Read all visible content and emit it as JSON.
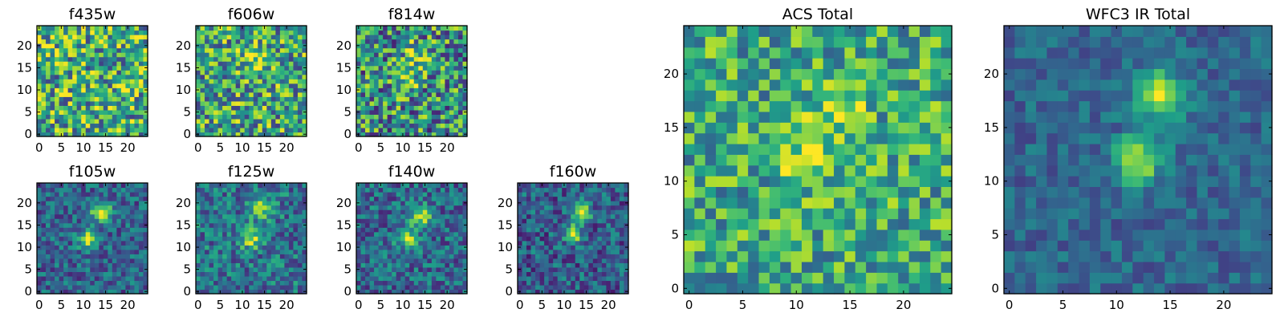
{
  "chart_data": [
    {
      "type": "heatmap",
      "title": "f435w",
      "colormap": "viridis",
      "grid_size": 25,
      "peaks": [],
      "noise": 0.42,
      "base": 0.62,
      "seed": 11,
      "xticks": [
        "0",
        "5",
        "10",
        "15",
        "20"
      ],
      "yticks": [
        "0",
        "5",
        "10",
        "15",
        "20"
      ],
      "xlim": [
        0,
        24
      ],
      "ylim": [
        0,
        24
      ]
    },
    {
      "type": "heatmap",
      "title": "f606w",
      "colormap": "viridis",
      "grid_size": 25,
      "peaks": [
        {
          "x": 13,
          "y": 17,
          "amp": 0.25,
          "sigma": 2.5
        }
      ],
      "noise": 0.4,
      "base": 0.58,
      "seed": 23,
      "xticks": [
        "0",
        "5",
        "10",
        "15",
        "20"
      ],
      "yticks": [
        "0",
        "5",
        "10",
        "15",
        "20"
      ],
      "xlim": [
        0,
        24
      ],
      "ylim": [
        0,
        24
      ]
    },
    {
      "type": "heatmap",
      "title": "f814w",
      "colormap": "viridis",
      "grid_size": 25,
      "peaks": [
        {
          "x": 13,
          "y": 18,
          "amp": 0.35,
          "sigma": 2.0
        },
        {
          "x": 11,
          "y": 12,
          "amp": 0.3,
          "sigma": 1.8
        }
      ],
      "noise": 0.42,
      "base": 0.5,
      "seed": 37,
      "xticks": [
        "0",
        "5",
        "10",
        "15",
        "20"
      ],
      "yticks": [
        "0",
        "5",
        "10",
        "15",
        "20"
      ],
      "xlim": [
        0,
        24
      ],
      "ylim": [
        0,
        24
      ]
    },
    {
      "type": "heatmap",
      "title": "f105w",
      "colormap": "viridis",
      "grid_size": 25,
      "peaks": [
        {
          "x": 14,
          "y": 18,
          "amp": 0.6,
          "sigma": 1.6
        },
        {
          "x": 11,
          "y": 12,
          "amp": 0.55,
          "sigma": 1.5
        }
      ],
      "noise": 0.22,
      "base": 0.32,
      "seed": 41,
      "xticks": [
        "0",
        "5",
        "10",
        "15",
        "20"
      ],
      "yticks": [
        "0",
        "5",
        "10",
        "15",
        "20"
      ],
      "xlim": [
        0,
        24
      ],
      "ylim": [
        0,
        24
      ]
    },
    {
      "type": "heatmap",
      "title": "f125w",
      "colormap": "viridis",
      "grid_size": 25,
      "peaks": [
        {
          "x": 14,
          "y": 19,
          "amp": 0.55,
          "sigma": 1.7
        },
        {
          "x": 12,
          "y": 12,
          "amp": 0.5,
          "sigma": 1.6
        }
      ],
      "noise": 0.25,
      "base": 0.38,
      "seed": 53,
      "xticks": [
        "0",
        "5",
        "10",
        "15",
        "20"
      ],
      "yticks": [
        "0",
        "5",
        "10",
        "15",
        "20"
      ],
      "xlim": [
        0,
        24
      ],
      "ylim": [
        0,
        24
      ]
    },
    {
      "type": "heatmap",
      "title": "f140w",
      "colormap": "viridis",
      "grid_size": 25,
      "peaks": [
        {
          "x": 14,
          "y": 17,
          "amp": 0.55,
          "sigma": 1.7
        },
        {
          "x": 11,
          "y": 12,
          "amp": 0.5,
          "sigma": 1.6
        }
      ],
      "noise": 0.24,
      "base": 0.34,
      "seed": 67,
      "xticks": [
        "0",
        "5",
        "10",
        "15",
        "20"
      ],
      "yticks": [
        "0",
        "5",
        "10",
        "15",
        "20"
      ],
      "xlim": [
        0,
        24
      ],
      "ylim": [
        0,
        24
      ]
    },
    {
      "type": "heatmap",
      "title": "f160w",
      "colormap": "viridis",
      "grid_size": 25,
      "peaks": [
        {
          "x": 14,
          "y": 18,
          "amp": 0.65,
          "sigma": 1.4
        },
        {
          "x": 12,
          "y": 13,
          "amp": 0.6,
          "sigma": 1.4
        }
      ],
      "noise": 0.24,
      "base": 0.3,
      "seed": 79,
      "xticks": [
        "0",
        "5",
        "10",
        "15",
        "20"
      ],
      "yticks": [
        "0",
        "5",
        "10",
        "15",
        "20"
      ],
      "xlim": [
        0,
        24
      ],
      "ylim": [
        0,
        24
      ]
    },
    {
      "type": "heatmap",
      "title": "ACS Total",
      "colormap": "viridis",
      "grid_size": 25,
      "peaks": [
        {
          "x": 14,
          "y": 17,
          "amp": 0.3,
          "sigma": 1.8
        },
        {
          "x": 11,
          "y": 12,
          "amp": 0.35,
          "sigma": 1.6
        }
      ],
      "noise": 0.3,
      "base": 0.6,
      "seed": 97,
      "xticks": [
        "0",
        "5",
        "10",
        "15",
        "20"
      ],
      "yticks": [
        "0",
        "5",
        "10",
        "15",
        "20"
      ],
      "xlim": [
        0,
        24
      ],
      "ylim": [
        0,
        24
      ]
    },
    {
      "type": "heatmap",
      "title": "WFC3 IR Total",
      "colormap": "viridis",
      "grid_size": 25,
      "peaks": [
        {
          "x": 14,
          "y": 18,
          "amp": 0.6,
          "sigma": 1.6
        },
        {
          "x": 12,
          "y": 12,
          "amp": 0.58,
          "sigma": 1.5
        }
      ],
      "noise": 0.14,
      "base": 0.33,
      "seed": 113,
      "xticks": [
        "0",
        "5",
        "10",
        "15",
        "20"
      ],
      "yticks": [
        "0",
        "5",
        "10",
        "15",
        "20"
      ],
      "xlim": [
        0,
        24
      ],
      "ylim": [
        0,
        24
      ]
    }
  ]
}
